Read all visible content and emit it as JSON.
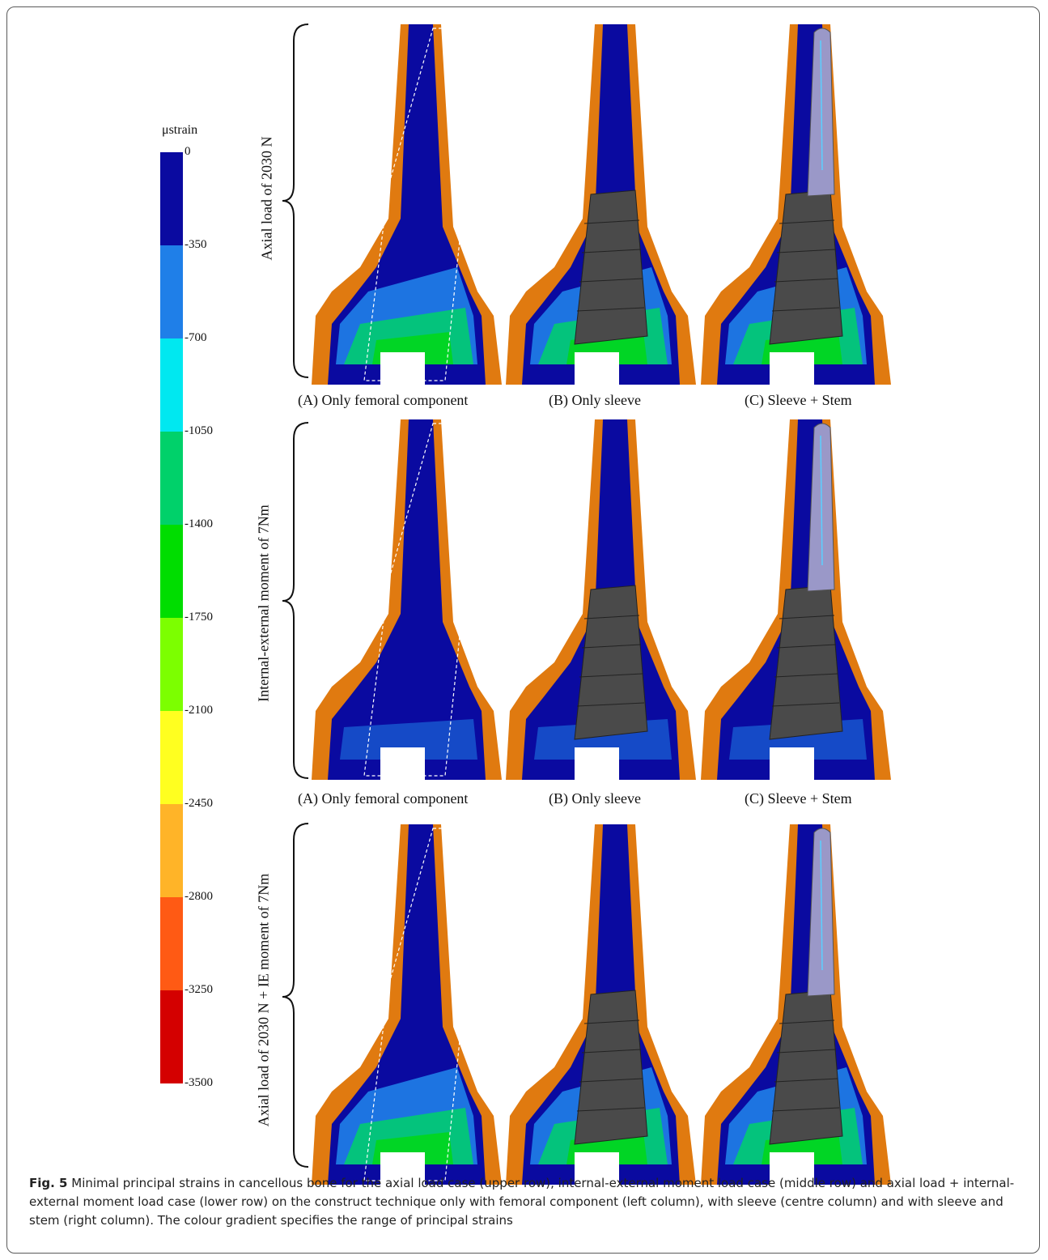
{
  "legend": {
    "title": "μstrain",
    "ticks": [
      "0",
      "-350",
      "-700",
      "-1050",
      "-1400",
      "-1750",
      "-2100",
      "-2450",
      "-2800",
      "-3250",
      "-3500"
    ],
    "colors": [
      "#0a0aa0",
      "#1f7fe8",
      "#00e8f0",
      "#00d16a",
      "#00dd00",
      "#7cff00",
      "#ffff20",
      "#ffb428",
      "#ff5a14",
      "#d40000"
    ]
  },
  "rows": [
    {
      "label": "Axial load of 2030 N",
      "captions": [
        "(A) Only femoral component",
        "(B) Only sleeve",
        "(C) Sleeve + Stem"
      ]
    },
    {
      "label": "Internal-external moment of 7Nm",
      "captions": [
        "(A) Only femoral component",
        "(B) Only sleeve",
        "(C) Sleeve + Stem"
      ]
    },
    {
      "label": "Axial load of 2030 N + IE moment of 7Nm",
      "captions": []
    }
  ],
  "caption": {
    "figure_label": "Fig. 5",
    "text": "Minimal principal strains in cancellous bone for the axial load case (upper row), internal-external moment load case (middle row) and axial load + internal-external moment load case (lower row) on the construct technique only with femoral component (left column), with sleeve (centre column) and with sleeve and stem (right column). The colour gradient specifies the range of principal strains"
  }
}
